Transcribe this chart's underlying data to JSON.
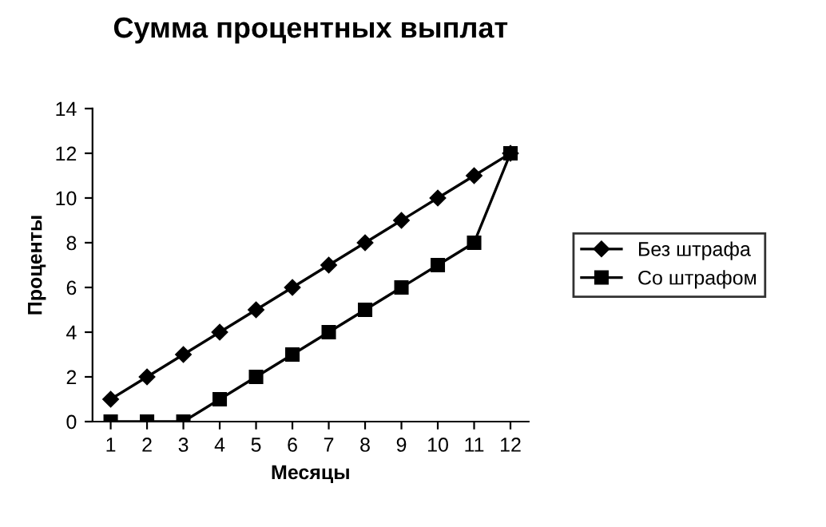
{
  "chart_data": {
    "type": "line",
    "title": "Сумма процентных выплат",
    "xlabel": "Месяцы",
    "ylabel": "Проценты",
    "categories": [
      "1",
      "2",
      "3",
      "4",
      "5",
      "6",
      "7",
      "8",
      "9",
      "10",
      "11",
      "12"
    ],
    "series": [
      {
        "name": "Без штрафа",
        "color": "#000000",
        "marker": "diamond",
        "values": [
          1,
          2,
          3,
          4,
          5,
          6,
          7,
          8,
          9,
          10,
          11,
          12
        ]
      },
      {
        "name": "Со штрафом",
        "color": "#000000",
        "marker": "square",
        "values": [
          0,
          0,
          0,
          1,
          2,
          3,
          4,
          5,
          6,
          7,
          8,
          12
        ]
      }
    ],
    "ylim": [
      0,
      14
    ],
    "yticks": [
      0,
      2,
      4,
      6,
      8,
      10,
      12,
      14
    ],
    "grid": false,
    "legend": "right",
    "line_style": "solid"
  }
}
